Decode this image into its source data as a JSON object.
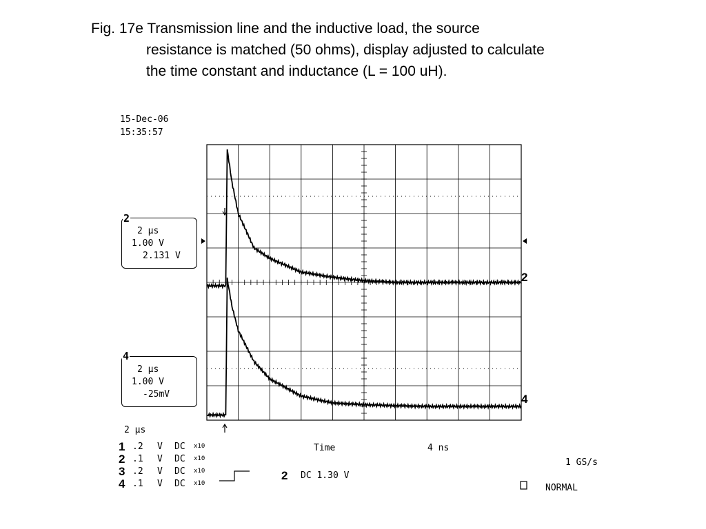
{
  "caption": {
    "line1": "Fig. 17e Transmission line and the inductive load, the source",
    "line2": "resistance is matched (50 ohms), display adjusted to calculate",
    "line3": "the time constant and inductance (L = 100 uH)."
  },
  "scope": {
    "date": "15-Dec-06",
    "time": "15:35:57",
    "timebase": "2 μs",
    "ch2_box": {
      "tag": "2",
      "timediv": "2 μs",
      "voltdiv": "1.00 V",
      "offset": "2.131 V"
    },
    "ch4_box": {
      "tag": "4",
      "timediv": "2 μs",
      "voltdiv": "1.00 V",
      "offset": "-25mV"
    },
    "trace_label_2": "2",
    "trace_label_4": "4",
    "channels": [
      {
        "num": "1",
        "scale": ".2",
        "unit": "V",
        "coupling": "DC",
        "probe": "x10"
      },
      {
        "num": "2",
        "scale": ".1",
        "unit": "V",
        "coupling": "DC",
        "probe": "x10"
      },
      {
        "num": "3",
        "scale": ".2",
        "unit": "V",
        "coupling": "DC",
        "probe": "x10"
      },
      {
        "num": "4",
        "scale": ".1",
        "unit": "V",
        "coupling": "DC",
        "probe": "x10"
      }
    ],
    "time_label": "Time",
    "time_value": "4 ns",
    "sample_rate": "1 GS/s",
    "trigger_channel": "2",
    "trigger_setting": "DC 1.30 V",
    "mode": "NORMAL"
  },
  "chart_data": {
    "type": "line",
    "title": "",
    "xlabel": "",
    "ylabel": "",
    "x_unit": "divisions (2 μs/div)",
    "y_unit": "divisions",
    "xlim": [
      0,
      10
    ],
    "ylim": [
      0,
      8
    ],
    "grid": true,
    "series": [
      {
        "name": "2",
        "x": [
          0,
          0.6,
          0.65,
          0.8,
          1.0,
          1.5,
          2.0,
          3.0,
          4.0,
          5.0,
          6.0,
          7.0,
          8.0,
          10.0
        ],
        "y": [
          3.9,
          3.9,
          7.85,
          6.9,
          6.0,
          5.0,
          4.7,
          4.3,
          4.15,
          4.05,
          4.0,
          4.0,
          4.0,
          4.0
        ]
      },
      {
        "name": "4",
        "x": [
          0,
          0.6,
          0.65,
          0.8,
          1.0,
          1.5,
          2.0,
          3.0,
          4.0,
          5.0,
          6.0,
          7.0,
          8.0,
          10.0
        ],
        "y": [
          0.15,
          0.15,
          4.1,
          3.3,
          2.6,
          1.7,
          1.2,
          0.7,
          0.5,
          0.45,
          0.42,
          0.4,
          0.4,
          0.4
        ]
      }
    ]
  }
}
